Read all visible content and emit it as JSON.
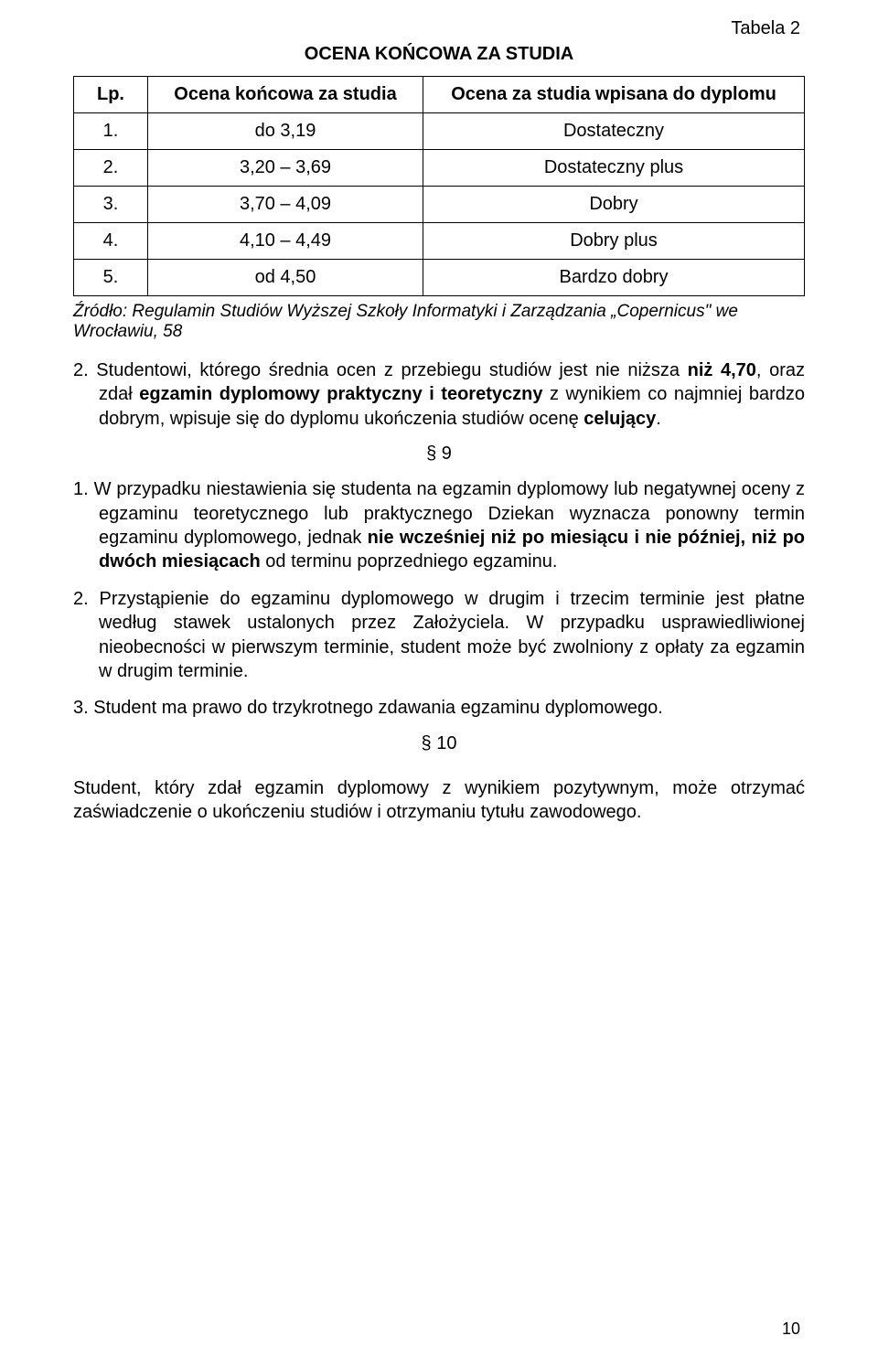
{
  "corner_label": "Tabela 2",
  "title": "OCENA KOŃCOWA ZA STUDIA",
  "table": {
    "headers": [
      "Lp.",
      "Ocena końcowa za studia",
      "Ocena za studia wpisana do dyplomu"
    ],
    "rows": [
      [
        "1.",
        "do 3,19",
        "Dostateczny"
      ],
      [
        "2.",
        "3,20 – 3,69",
        "Dostateczny plus"
      ],
      [
        "3.",
        "3,70 – 4,09",
        "Dobry"
      ],
      [
        "4.",
        "4,10 – 4,49",
        "Dobry plus"
      ],
      [
        "5.",
        "od 4,50",
        "Bardzo dobry"
      ]
    ]
  },
  "source": "Źródło: Regulamin Studiów Wyższej Szkoły Informatyki i Zarządzania „Copernicus\" we Wrocławiu, 58",
  "pre_list_item": {
    "num": "2.",
    "t1": "Studentowi, którego średnia ocen z przebiegu studiów jest nie niższa ",
    "b1": "niż 4,70",
    "t2": ", oraz zdał ",
    "b2": "egzamin dyplomowy praktyczny i teoretyczny",
    "t3": " z wynikiem co najmniej bardzo dobrym, wpisuje się do dyplomu ukończenia studiów ocenę ",
    "b3": "celujący",
    "t4": "."
  },
  "section9": "§ 9",
  "list9": [
    {
      "num": "1.",
      "t1": "W przypadku niestawienia się studenta na egzamin dyplomowy lub negatywnej oceny z egzaminu teoretycznego lub praktycznego Dziekan wyznacza ponowny termin egzaminu dyplomowego, jednak ",
      "b1": "nie wcześniej niż po miesiącu i nie później, niż po dwóch miesiącach",
      "t2": " od terminu poprzedniego egzaminu."
    },
    {
      "num": "2.",
      "t1": "Przystąpienie do egzaminu dyplomowego w drugim i trzecim terminie jest płatne według stawek ustalonych przez Założyciela. W przypadku usprawiedliwionej nieobecności w pierwszym terminie, student może być zwolniony z opłaty za egzamin w drugim terminie."
    },
    {
      "num": "3.",
      "t1": "Student ma prawo do trzykrotnego zdawania egzaminu dyplomowego."
    }
  ],
  "section10": "§ 10",
  "final_para": "Student, który zdał egzamin dyplomowy z wynikiem pozytywnym, może otrzymać zaświadczenie o ukończeniu studiów i otrzymaniu tytułu zawodowego.",
  "page_number": "10"
}
